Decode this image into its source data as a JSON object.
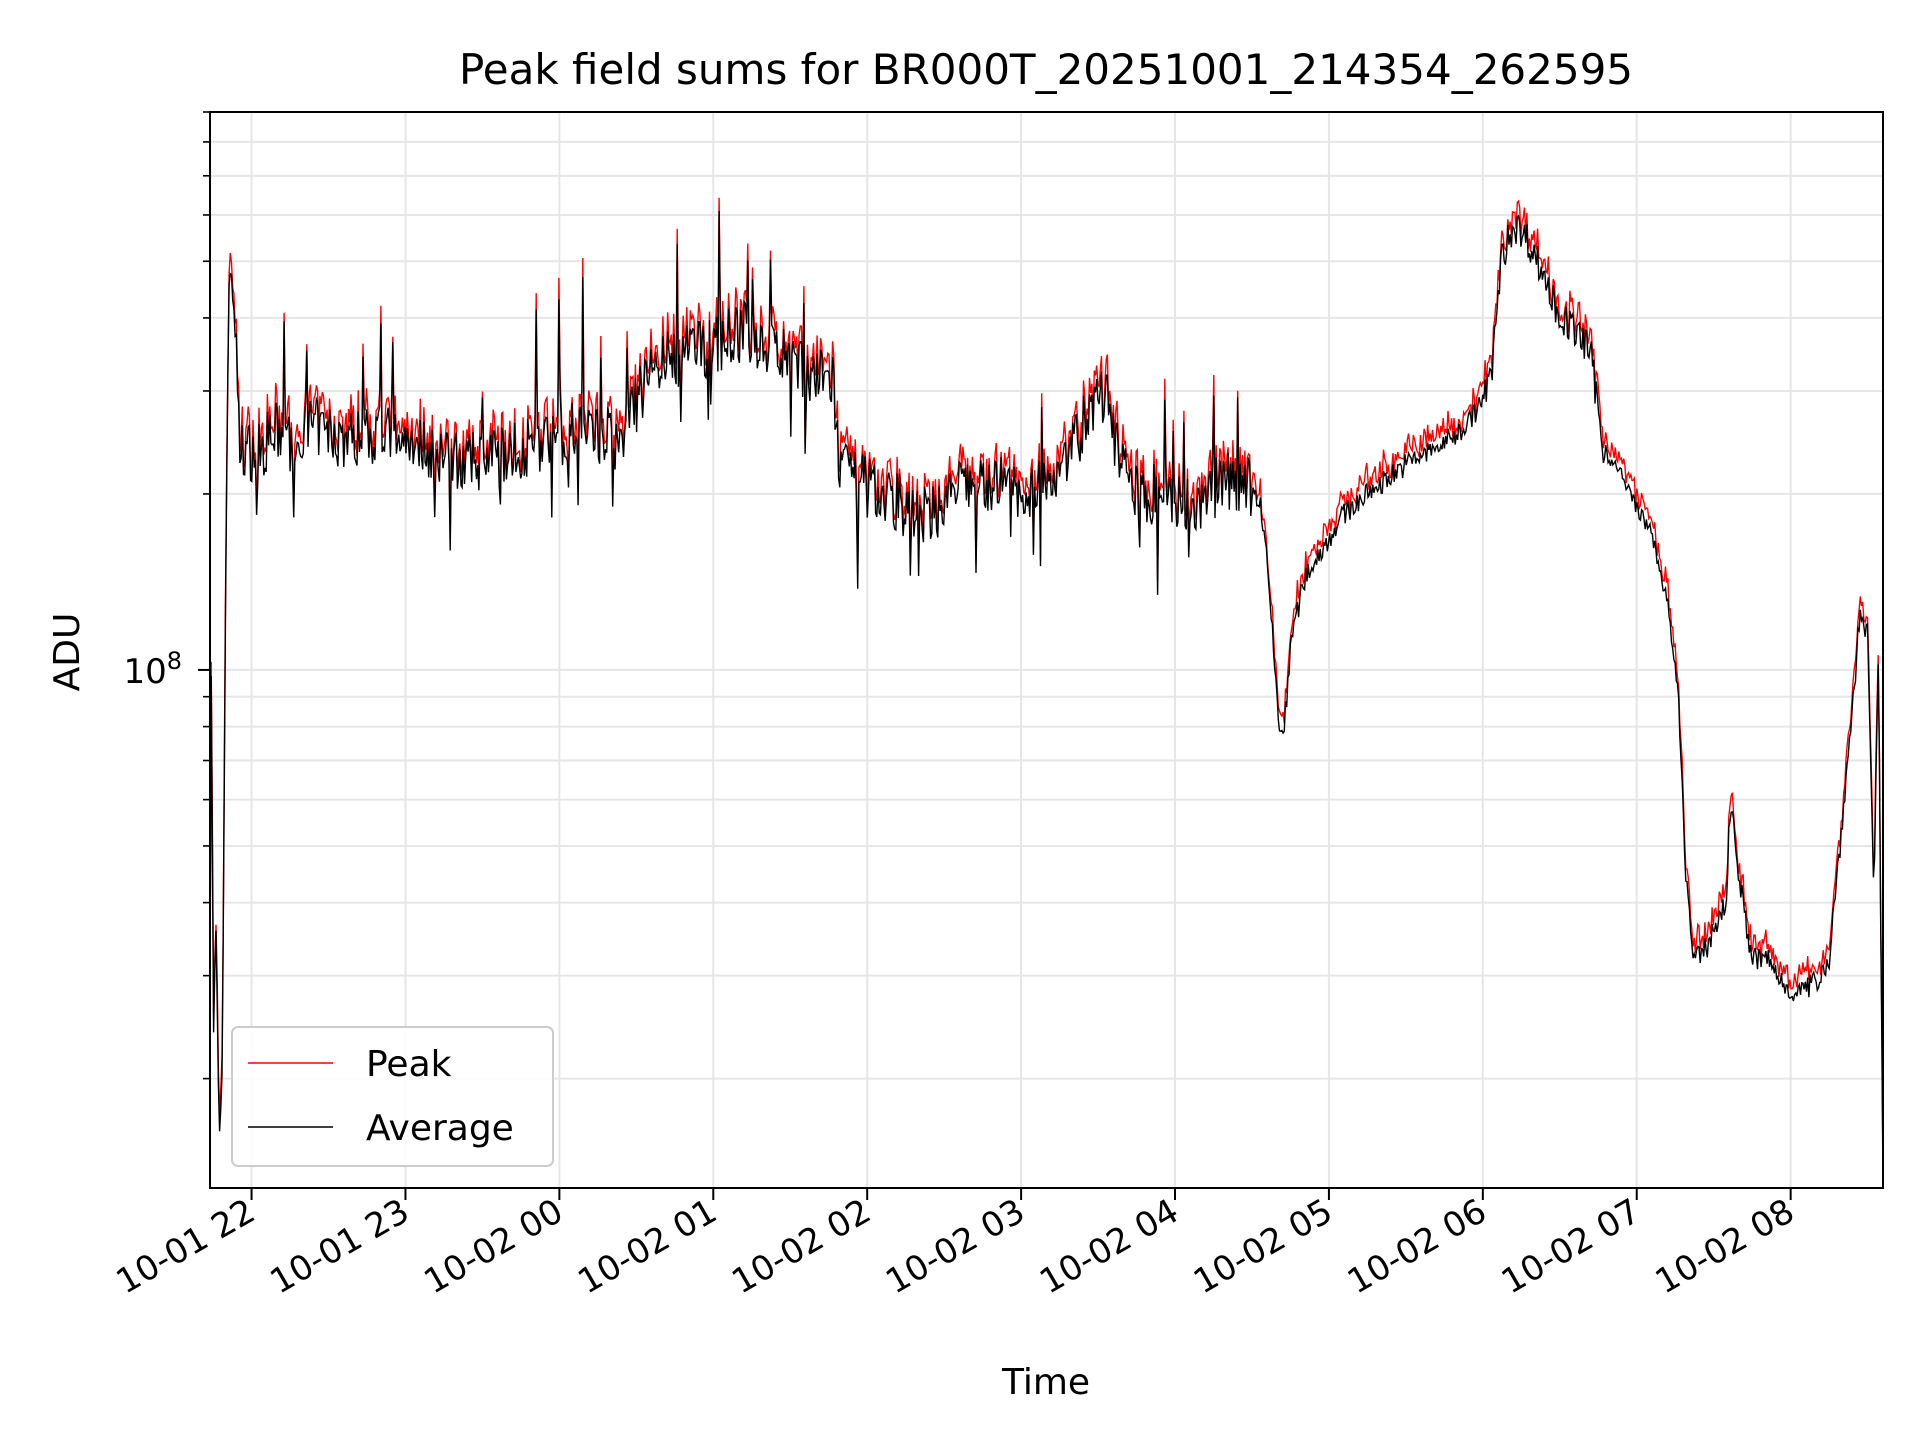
{
  "chart_data": {
    "type": "line",
    "title": "Peak field sums for BR000T_20251001_214354_262595",
    "xlabel": "Time",
    "ylabel": "ADU",
    "y_scale": "log",
    "x_unit": "hours since 10-01 21:00",
    "xlim": [
      21.73,
      32.6
    ],
    "ylim": [
      13000000,
      900000000
    ],
    "y_major_ticks": [
      {
        "value": 100000000,
        "base": "10",
        "exp": "8"
      }
    ],
    "y_minor_ticks": [
      20000000,
      30000000,
      40000000,
      50000000,
      60000000,
      70000000,
      80000000,
      90000000,
      200000000,
      300000000,
      400000000,
      500000000,
      600000000,
      700000000,
      800000000,
      900000000
    ],
    "x_ticks": [
      {
        "value": 22,
        "label": "10-01 22"
      },
      {
        "value": 23,
        "label": "10-01 23"
      },
      {
        "value": 24,
        "label": "10-02 00"
      },
      {
        "value": 25,
        "label": "10-02 01"
      },
      {
        "value": 26,
        "label": "10-02 02"
      },
      {
        "value": 27,
        "label": "10-02 03"
      },
      {
        "value": 28,
        "label": "10-02 04"
      },
      {
        "value": 29,
        "label": "10-02 05"
      },
      {
        "value": 30,
        "label": "10-02 06"
      },
      {
        "value": 31,
        "label": "10-02 07"
      },
      {
        "value": 32,
        "label": "10-02 08"
      }
    ],
    "grid": true,
    "legend_position": "lower-left",
    "series": [
      {
        "name": "Peak",
        "color": "#ff0000",
        "role": "peak"
      },
      {
        "name": "Average",
        "color": "#000000",
        "role": "average"
      }
    ],
    "baseline_points": [
      [
        21.73,
        30000000
      ],
      [
        21.74,
        150000000
      ],
      [
        21.75,
        22000000
      ],
      [
        21.77,
        35000000
      ],
      [
        21.79,
        14000000
      ],
      [
        21.81,
        22000000
      ],
      [
        21.84,
        260000000
      ],
      [
        21.86,
        500000000
      ],
      [
        21.89,
        420000000
      ],
      [
        21.92,
        240000000
      ],
      [
        22.05,
        235000000
      ],
      [
        22.15,
        255000000
      ],
      [
        22.25,
        245000000
      ],
      [
        22.4,
        260000000
      ],
      [
        22.6,
        248000000
      ],
      [
        22.8,
        250000000
      ],
      [
        23.0,
        252000000
      ],
      [
        23.2,
        235000000
      ],
      [
        23.4,
        225000000
      ],
      [
        23.6,
        232000000
      ],
      [
        23.8,
        240000000
      ],
      [
        24.0,
        255000000
      ],
      [
        24.2,
        258000000
      ],
      [
        24.4,
        245000000
      ],
      [
        24.6,
        330000000
      ],
      [
        24.8,
        345000000
      ],
      [
        25.0,
        360000000
      ],
      [
        25.2,
        380000000
      ],
      [
        25.4,
        350000000
      ],
      [
        25.6,
        320000000
      ],
      [
        25.78,
        310000000
      ],
      [
        25.82,
        220000000
      ],
      [
        26.0,
        205000000
      ],
      [
        26.2,
        195000000
      ],
      [
        26.32,
        180000000
      ],
      [
        26.45,
        188000000
      ],
      [
        26.6,
        205000000
      ],
      [
        26.8,
        210000000
      ],
      [
        27.0,
        200000000
      ],
      [
        27.2,
        215000000
      ],
      [
        27.4,
        260000000
      ],
      [
        27.55,
        300000000
      ],
      [
        27.7,
        200000000
      ],
      [
        27.9,
        200000000
      ],
      [
        28.0,
        195000000
      ],
      [
        28.15,
        192000000
      ],
      [
        28.3,
        210000000
      ],
      [
        28.45,
        210000000
      ],
      [
        28.55,
        195000000
      ],
      [
        28.6,
        150000000
      ],
      [
        28.65,
        100000000
      ],
      [
        28.68,
        78000000
      ],
      [
        28.71,
        80000000
      ],
      [
        28.76,
        115000000
      ],
      [
        28.85,
        145000000
      ],
      [
        28.95,
        160000000
      ],
      [
        29.1,
        185000000
      ],
      [
        29.3,
        205000000
      ],
      [
        29.5,
        225000000
      ],
      [
        29.7,
        240000000
      ],
      [
        29.85,
        255000000
      ],
      [
        29.95,
        275000000
      ],
      [
        30.05,
        310000000
      ],
      [
        30.12,
        500000000
      ],
      [
        30.2,
        580000000
      ],
      [
        30.3,
        540000000
      ],
      [
        30.4,
        470000000
      ],
      [
        30.5,
        400000000
      ],
      [
        30.6,
        380000000
      ],
      [
        30.7,
        350000000
      ],
      [
        30.78,
        240000000
      ],
      [
        30.9,
        215000000
      ],
      [
        31.0,
        190000000
      ],
      [
        31.1,
        170000000
      ],
      [
        31.2,
        130000000
      ],
      [
        31.27,
        90000000
      ],
      [
        31.32,
        45000000
      ],
      [
        31.36,
        33000000
      ],
      [
        31.42,
        32000000
      ],
      [
        31.5,
        36000000
      ],
      [
        31.58,
        40000000
      ],
      [
        31.61,
        60000000
      ],
      [
        31.65,
        48000000
      ],
      [
        31.7,
        38000000
      ],
      [
        31.75,
        32000000
      ],
      [
        31.85,
        32000000
      ],
      [
        31.95,
        29000000
      ],
      [
        32.05,
        28000000
      ],
      [
        32.15,
        29000000
      ],
      [
        32.25,
        32000000
      ],
      [
        32.32,
        50000000
      ],
      [
        32.4,
        85000000
      ],
      [
        32.45,
        125000000
      ],
      [
        32.5,
        115000000
      ],
      [
        32.54,
        40000000
      ],
      [
        32.57,
        110000000
      ],
      [
        32.6,
        13000000
      ]
    ]
  }
}
